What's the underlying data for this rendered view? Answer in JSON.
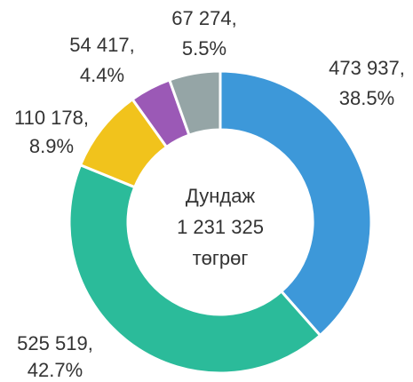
{
  "chart_data": {
    "type": "donut",
    "values": [
      473937,
      525519,
      110178,
      54417,
      67274
    ],
    "value_labels": [
      "473 937,",
      "525 519,",
      "110 178,",
      "54 417,",
      "67 274,"
    ],
    "percents": [
      38.5,
      42.7,
      8.9,
      4.4,
      5.5
    ],
    "percent_labels": [
      "38.5%",
      "42.7%",
      "8.9%",
      "4.4%",
      "5.5%"
    ],
    "colors": [
      "#3d98d9",
      "#2bbb9a",
      "#f1c31c",
      "#9b59b6",
      "#95a5a6"
    ],
    "center_title": "Дундаж",
    "total": 1231325,
    "total_label": "1 231 325",
    "center_unit": "төгрөг"
  }
}
